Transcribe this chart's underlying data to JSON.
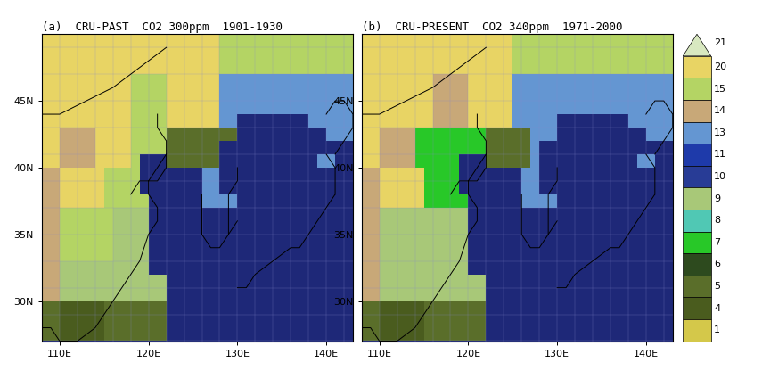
{
  "title_a": "(a)  CRU-PAST  CO2 300ppm  1901-1930",
  "title_b": "(b)  CRU-PRESENT  CO2 340ppm  1971-2000",
  "lon_min": 108,
  "lon_max": 143,
  "lat_min": 27,
  "lat_max": 50,
  "xticks": [
    110,
    120,
    130,
    140
  ],
  "yticks": [
    30,
    35,
    40,
    45
  ],
  "xlabel_suffix": "E",
  "ylabel_suffix": "N",
  "biome_colors": {
    "0": "#ffffff",
    "1": "#d4c84a",
    "4": "#4a5c1e",
    "5": "#5a6e2a",
    "6": "#2d4a1e",
    "7": "#28c828",
    "8": "#50c8b4",
    "9": "#a8c878",
    "10": "#283c96",
    "11": "#1e3aaa",
    "13": "#6496d2",
    "14": "#c8a878",
    "15": "#b4d464",
    "20": "#e8d464",
    "21": "#d8e8c0",
    "99": "#1e2878"
  },
  "colorbar_ids": [
    21,
    20,
    15,
    14,
    13,
    11,
    10,
    9,
    8,
    7,
    6,
    5,
    4,
    1
  ],
  "ocean_id": 99,
  "nodata_id": 0,
  "title_fontsize": 9,
  "tick_fontsize": 8,
  "colorbar_fontsize": 8,
  "background": "#ffffff"
}
